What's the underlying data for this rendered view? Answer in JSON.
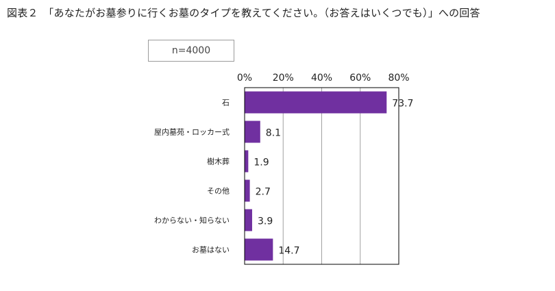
{
  "title": "図表２　「あなたがお墓参りに行くお墓のタイプを教えてください。（お答えはいくつでも）」への回答",
  "sample_note": "n=4000",
  "colors": {
    "bar": "#7030a0",
    "grid": "#a0a0a0",
    "frame": "#000000"
  },
  "chart_data": {
    "type": "bar",
    "orientation": "horizontal",
    "title": "図表２　「あなたがお墓参りに行くお墓のタイプを教えてください。（お答えはいくつでも）」への回答",
    "categories": [
      "石",
      "屋内墓苑・ロッカー式",
      "樹木葬",
      "その他",
      "わからない・知らない",
      "お墓はない"
    ],
    "values": [
      73.7,
      8.1,
      1.9,
      2.7,
      3.9,
      14.7
    ],
    "data_labels": [
      "73.7",
      "8.1",
      "1.9",
      "2.7",
      "3.9",
      "14.7"
    ],
    "xlim": [
      0,
      80
    ],
    "ticks": [
      0,
      20,
      40,
      60,
      80
    ],
    "tick_labels": [
      "0%",
      "20%",
      "40%",
      "60%",
      "80%"
    ],
    "axis_position": "top",
    "grid": true,
    "legend": "none"
  }
}
